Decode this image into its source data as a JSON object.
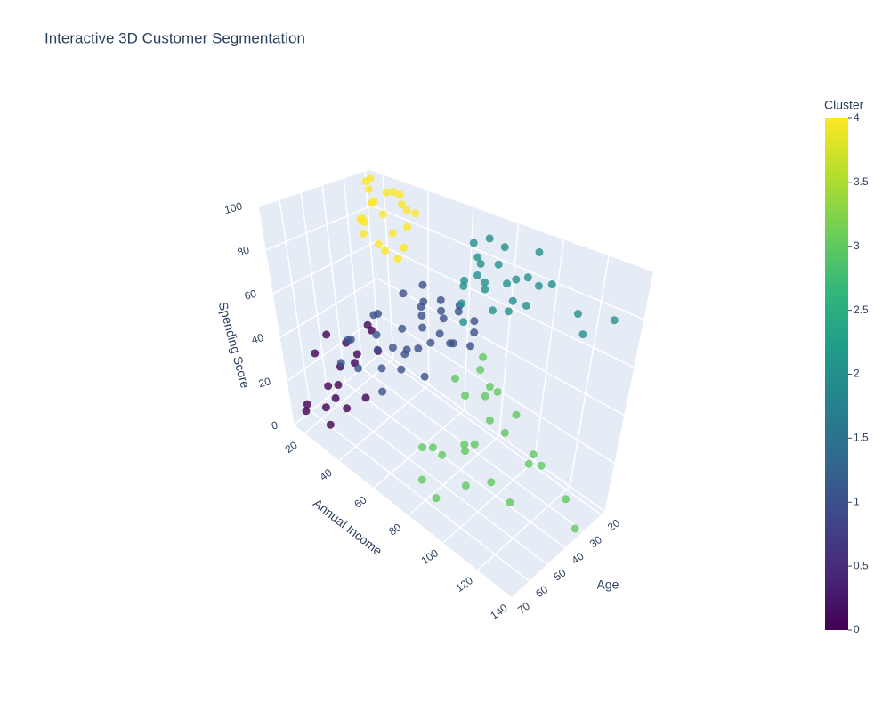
{
  "chart_data": {
    "type": "scatter3d",
    "title": "Interactive 3D Customer Segmentation",
    "x_title": "Annual Income",
    "y_title": "Age",
    "z_title": "Spending Score",
    "xlim": [
      14,
      140
    ],
    "xticks": [
      20,
      40,
      60,
      80,
      100,
      120,
      140
    ],
    "ylim": [
      18,
      70
    ],
    "yticks": [
      20,
      30,
      40,
      50,
      60,
      70
    ],
    "zlim": [
      0,
      100
    ],
    "zticks": [
      0,
      20,
      40,
      60,
      80,
      100
    ],
    "grid": true,
    "x": [
      15,
      17,
      19,
      20,
      21,
      23,
      24,
      25,
      28,
      29,
      30,
      33,
      34,
      36,
      37,
      38,
      39,
      18,
      26,
      31,
      35,
      40,
      15,
      16,
      18,
      19,
      20,
      21,
      23,
      24,
      25,
      27,
      28,
      29,
      31,
      33,
      34,
      36,
      38,
      39,
      40,
      41,
      42,
      43,
      44,
      45,
      46,
      47,
      48,
      49,
      50,
      51,
      52,
      53,
      54,
      55,
      56,
      57,
      58,
      59,
      60,
      61,
      62,
      63,
      64,
      65,
      66,
      67,
      68,
      69,
      70,
      71,
      72,
      73,
      74,
      70,
      71,
      73,
      74,
      75,
      77,
      78,
      79,
      81,
      83,
      85,
      86,
      87,
      88,
      93,
      97,
      98,
      99,
      101,
      103,
      113,
      120,
      126,
      137,
      78,
      95,
      71,
      72,
      73,
      75,
      76,
      77,
      78,
      79,
      81,
      85,
      86,
      87,
      88,
      93,
      97,
      98,
      99,
      101,
      103,
      113,
      120,
      126,
      137,
      137,
      81,
      95
    ],
    "y": [
      21,
      22,
      23,
      24,
      30,
      26,
      33,
      22,
      27,
      31,
      20,
      24,
      29,
      35,
      21,
      26,
      32,
      28,
      34,
      25,
      23,
      30,
      50,
      64,
      45,
      58,
      52,
      67,
      40,
      60,
      47,
      55,
      38,
      63,
      49,
      57,
      42,
      65,
      51,
      44,
      60,
      45,
      23,
      67,
      35,
      50,
      28,
      65,
      40,
      55,
      22,
      48,
      33,
      68,
      26,
      58,
      38,
      20,
      63,
      43,
      31,
      52,
      25,
      66,
      37,
      47,
      21,
      57,
      34,
      62,
      27,
      49,
      40,
      54,
      30,
      32,
      29,
      35,
      30,
      38,
      28,
      34,
      31,
      36,
      27,
      33,
      39,
      29,
      35,
      32,
      30,
      37,
      28,
      34,
      31,
      36,
      29,
      32,
      30,
      40,
      36,
      47,
      22,
      55,
      34,
      58,
      42,
      19,
      50,
      27,
      59,
      45,
      36,
      24,
      52,
      40,
      30,
      57,
      48,
      23,
      37,
      54,
      45,
      32,
      41,
      33,
      49
    ],
    "z": [
      95,
      92,
      99,
      87,
      82,
      90,
      77,
      94,
      86,
      73,
      89,
      97,
      80,
      75,
      88,
      92,
      71,
      79,
      84,
      98,
      81,
      76,
      6,
      4,
      14,
      29,
      35,
      12,
      20,
      8,
      31,
      17,
      36,
      5,
      26,
      11,
      39,
      22,
      15,
      33,
      47,
      52,
      55,
      42,
      58,
      40,
      49,
      53,
      46,
      60,
      51,
      43,
      57,
      45,
      50,
      41,
      55,
      48,
      59,
      44,
      52,
      47,
      56,
      39,
      50,
      58,
      43,
      54,
      46,
      49,
      42,
      55,
      51,
      44,
      57,
      72,
      91,
      77,
      86,
      69,
      95,
      81,
      74,
      88,
      93,
      68,
      83,
      79,
      90,
      75,
      86,
      88,
      97,
      77,
      85,
      91,
      79,
      74,
      83,
      63,
      73,
      9,
      35,
      15,
      26,
      5,
      39,
      20,
      12,
      29,
      3,
      17,
      33,
      10,
      22,
      4,
      27,
      14,
      36,
      8,
      18,
      16,
      28,
      1,
      18,
      40,
      24
    ],
    "cluster": [
      4,
      4,
      4,
      4,
      4,
      4,
      4,
      4,
      4,
      4,
      4,
      4,
      4,
      4,
      4,
      4,
      4,
      4,
      4,
      4,
      4,
      4,
      0,
      0,
      0,
      0,
      0,
      0,
      0,
      0,
      0,
      0,
      0,
      0,
      0,
      0,
      0,
      0,
      0,
      0,
      1,
      1,
      1,
      1,
      1,
      1,
      1,
      1,
      1,
      1,
      1,
      1,
      1,
      1,
      1,
      1,
      1,
      1,
      1,
      1,
      1,
      1,
      1,
      1,
      1,
      1,
      1,
      1,
      1,
      1,
      1,
      1,
      1,
      1,
      1,
      2,
      2,
      2,
      2,
      2,
      2,
      2,
      2,
      2,
      2,
      2,
      2,
      2,
      2,
      2,
      2,
      2,
      2,
      2,
      2,
      2,
      2,
      2,
      2,
      2,
      2,
      3,
      3,
      3,
      3,
      3,
      3,
      3,
      3,
      3,
      3,
      3,
      3,
      3,
      3,
      3,
      3,
      3,
      3,
      3,
      3,
      3,
      3,
      3,
      3,
      3,
      3
    ],
    "colorbar_title": "Cluster",
    "clim": [
      0,
      4
    ],
    "colorbar_ticks": [
      0,
      0.5,
      1,
      1.5,
      2,
      2.5,
      3,
      3.5,
      4
    ],
    "colorscale": [
      [
        0,
        "#440154"
      ],
      [
        0.111,
        "#482878"
      ],
      [
        0.222,
        "#3e4989"
      ],
      [
        0.333,
        "#31688e"
      ],
      [
        0.444,
        "#26828e"
      ],
      [
        0.556,
        "#1f9e89"
      ],
      [
        0.667,
        "#35b779"
      ],
      [
        0.778,
        "#6ece58"
      ],
      [
        0.889,
        "#b5de2b"
      ],
      [
        1,
        "#fde725"
      ]
    ]
  }
}
